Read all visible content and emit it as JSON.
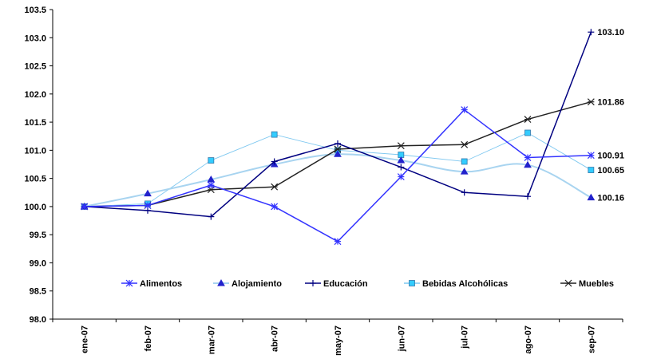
{
  "chart_data": {
    "type": "line",
    "title": "",
    "xlabel": "",
    "ylabel": "",
    "ylim": [
      98.0,
      103.5
    ],
    "y_ticks": [
      "98.0",
      "98.5",
      "99.0",
      "99.5",
      "100.0",
      "100.5",
      "101.0",
      "101.5",
      "102.0",
      "102.5",
      "103.0",
      "103.5"
    ],
    "categories": [
      "ene-07",
      "feb-07",
      "mar-07",
      "abr-07",
      "may-07",
      "jun-07",
      "jul-07",
      "ago-07",
      "sep-07"
    ],
    "grid": false,
    "legend_position": "inside-bottom",
    "series": [
      {
        "name": "Alimentos",
        "color": "#3333FF",
        "marker": "asterisk",
        "smooth": false,
        "values": [
          100.0,
          100.02,
          100.38,
          100.0,
          99.38,
          100.53,
          101.72,
          100.87,
          100.91
        ],
        "end_label": "100.91"
      },
      {
        "name": "Alojamiento",
        "color": "#2222CC",
        "marker": "triangle",
        "smooth": true,
        "values": [
          100.0,
          100.23,
          100.48,
          100.75,
          100.93,
          100.82,
          100.62,
          100.74,
          100.16
        ],
        "end_label": "100.16"
      },
      {
        "name": "Educación",
        "color": "#000080",
        "marker": "plus",
        "smooth": false,
        "values": [
          100.0,
          99.93,
          99.82,
          100.8,
          101.12,
          100.7,
          100.25,
          100.18,
          103.1
        ],
        "end_label": "103.10"
      },
      {
        "name": "Bebidas Alcohólicas",
        "color": "#8888BB",
        "marker": "square",
        "marker_fill": "#33CCFF",
        "smooth": false,
        "values": [
          100.0,
          100.05,
          100.82,
          101.28,
          101.0,
          100.92,
          100.8,
          101.31,
          100.65
        ],
        "end_label": "100.65"
      },
      {
        "name": "Muebles",
        "color": "#222222",
        "marker": "star",
        "smooth": false,
        "values": [
          100.0,
          100.02,
          100.3,
          100.35,
          101.02,
          101.08,
          101.1,
          101.55,
          101.86
        ],
        "end_label": "101.86"
      }
    ],
    "legend_order": [
      "Alimentos",
      "Alojamiento",
      "Educación",
      "Bebidas Alcohólicas",
      "Muebles"
    ],
    "legend_line_colors": {
      "Alojamiento": "#A8D4F0",
      "Bebidas Alcohólicas": "#7FC8F0"
    }
  }
}
